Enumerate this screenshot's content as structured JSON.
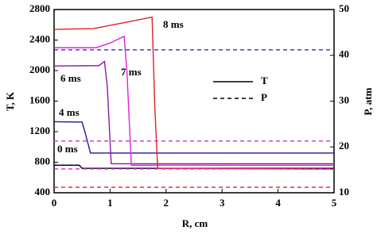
{
  "chart_data": {
    "type": "line",
    "xlabel": "R, cm",
    "ylabel": "T, K",
    "y2label": "P, atm",
    "xlim": [
      0,
      5
    ],
    "xticks": [
      0,
      1,
      2,
      3,
      4,
      5
    ],
    "ylim": [
      400,
      2800
    ],
    "yticks": [
      400,
      800,
      1200,
      1600,
      2000,
      2400,
      2800
    ],
    "y2lim": [
      10,
      50
    ],
    "y2ticks": [
      10,
      20,
      30,
      40,
      50
    ],
    "legend": [
      "T",
      "P"
    ],
    "series": [
      {
        "name": "0 ms",
        "color": "#000000",
        "x": [
          0,
          0.45,
          0.5,
          5
        ],
        "values": [
          760,
          760,
          720,
          720
        ]
      },
      {
        "name": "4 ms",
        "color": "#1a1aa0",
        "x": [
          0,
          0.5,
          0.55,
          0.65,
          5
        ],
        "values": [
          1330,
          1325,
          1200,
          920,
          920
        ]
      },
      {
        "name": "6 ms",
        "color": "#8a1aa8",
        "x": [
          0,
          0.8,
          0.9,
          0.95,
          1.02,
          5
        ],
        "values": [
          2060,
          2065,
          2120,
          1800,
          780,
          780
        ]
      },
      {
        "name": "7 ms",
        "color": "#e020e0",
        "x": [
          0,
          0.75,
          1.0,
          1.25,
          1.3,
          1.38,
          5
        ],
        "values": [
          2300,
          2300,
          2360,
          2450,
          2000,
          760,
          760
        ]
      },
      {
        "name": "8 ms",
        "color": "#e02020",
        "x": [
          0,
          0.7,
          1.2,
          1.75,
          1.8,
          1.85,
          5
        ],
        "values": [
          2540,
          2550,
          2620,
          2700,
          1500,
          720,
          710
        ]
      },
      {
        "color": "#000000",
        "axis": "y2",
        "x": [
          0,
          0.5
        ],
        "values": [
          16,
          16
        ]
      },
      {
        "color": "#3a2ad0",
        "axis": "y2",
        "x": [
          0,
          5
        ],
        "values": [
          41.2,
          41.2
        ]
      },
      {
        "color": "#d040d0",
        "axis": "y2",
        "x": [
          0,
          5
        ],
        "values": [
          21.3,
          21.3
        ]
      },
      {
        "color": "#e020e0",
        "axis": "y2",
        "x": [
          0,
          5
        ],
        "values": [
          15.2,
          15.2
        ]
      },
      {
        "color": "#e02020",
        "axis": "y2",
        "x": [
          0,
          5
        ],
        "values": [
          11.2,
          11.2
        ]
      }
    ]
  }
}
